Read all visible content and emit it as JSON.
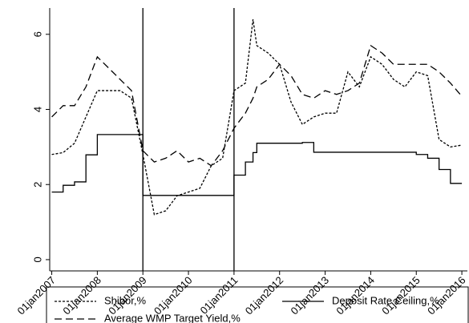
{
  "chart_data": {
    "type": "line",
    "x": [
      "2007-01-01",
      "2007-04-01",
      "2007-07-01",
      "2007-10-01",
      "2008-01-01",
      "2008-04-01",
      "2008-07-01",
      "2008-10-01",
      "2009-01-01",
      "2009-04-01",
      "2009-07-01",
      "2009-10-01",
      "2010-01-01",
      "2010-04-01",
      "2010-07-01",
      "2010-10-01",
      "2011-01-01",
      "2011-04-01",
      "2011-06-01",
      "2011-07-01",
      "2011-10-01",
      "2012-01-01",
      "2012-04-01",
      "2012-07-01",
      "2012-10-01",
      "2013-01-01",
      "2013-04-01",
      "2013-07-01",
      "2013-10-01",
      "2014-01-01",
      "2014-04-01",
      "2014-07-01",
      "2014-10-01",
      "2015-01-01",
      "2015-04-01",
      "2015-07-01",
      "2015-10-01",
      "2016-01-01"
    ],
    "series": [
      {
        "name": "Shibor,%",
        "color": "#000000",
        "style": "dotted",
        "step": false,
        "values": [
          2.8,
          2.85,
          3.1,
          3.8,
          4.5,
          4.5,
          4.5,
          4.3,
          2.8,
          1.2,
          1.3,
          1.7,
          1.8,
          1.9,
          2.5,
          2.7,
          4.5,
          4.7,
          6.4,
          5.7,
          5.5,
          5.2,
          4.2,
          3.6,
          3.8,
          3.9,
          3.9,
          5.0,
          4.6,
          5.4,
          5.2,
          4.8,
          4.6,
          5.0,
          4.9,
          3.2,
          3.0,
          3.05
        ]
      },
      {
        "name": "Deposit Rate Ceiling,%",
        "color": "#000000",
        "style": "solid",
        "step": true,
        "values": [
          1.8,
          1.98,
          2.07,
          2.79,
          3.33,
          3.33,
          3.33,
          3.33,
          1.71,
          1.71,
          1.71,
          1.71,
          1.71,
          1.71,
          1.71,
          1.71,
          2.25,
          2.6,
          2.85,
          3.1,
          3.1,
          3.1,
          3.1,
          3.12,
          2.86,
          2.86,
          2.86,
          2.86,
          2.86,
          2.86,
          2.86,
          2.86,
          2.86,
          2.8,
          2.7,
          2.4,
          2.03,
          2.03
        ]
      },
      {
        "name": "Average WMP Target Yield,%",
        "color": "#000000",
        "style": "dashed",
        "step": false,
        "values": [
          3.8,
          4.1,
          4.1,
          4.6,
          5.4,
          5.1,
          4.8,
          4.5,
          2.9,
          2.6,
          2.7,
          2.9,
          2.6,
          2.7,
          2.5,
          2.9,
          3.5,
          3.9,
          4.3,
          4.6,
          4.8,
          5.2,
          4.9,
          4.4,
          4.3,
          4.5,
          4.4,
          4.5,
          4.7,
          5.7,
          5.5,
          5.2,
          5.2,
          5.2,
          5.2,
          5.0,
          4.7,
          4.35
        ]
      }
    ],
    "xlim": [
      "2006-12-15",
      "2016-02-15"
    ],
    "xticks": [
      {
        "value": "2007-01-01",
        "label": "01jan2007"
      },
      {
        "value": "2008-01-01",
        "label": "01jan2008"
      },
      {
        "value": "2009-01-01",
        "label": "01jan2009"
      },
      {
        "value": "2010-01-01",
        "label": "01jan2010"
      },
      {
        "value": "2011-01-01",
        "label": "01jan2011"
      },
      {
        "value": "2012-01-01",
        "label": "01jan2012"
      },
      {
        "value": "2013-01-01",
        "label": "01jan2013"
      },
      {
        "value": "2014-01-01",
        "label": "01jan2014"
      },
      {
        "value": "2015-01-01",
        "label": "01jan2015"
      },
      {
        "value": "2016-01-01",
        "label": "01jan2016"
      }
    ],
    "ylim": [
      -0.3,
      6.7
    ],
    "yticks": [
      0,
      2,
      4,
      6
    ],
    "vlines": [
      "2009-01-01",
      "2011-01-01"
    ],
    "legend": "bottom"
  }
}
